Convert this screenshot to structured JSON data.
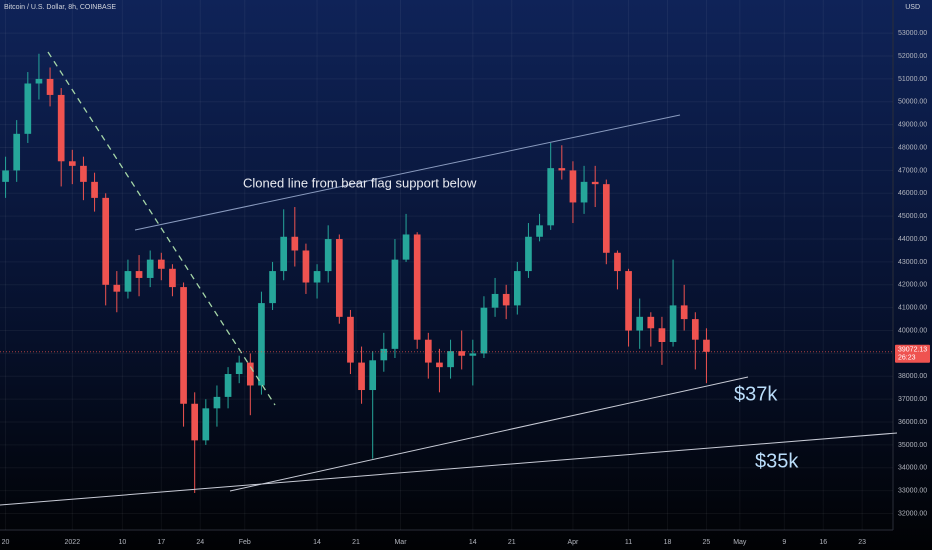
{
  "chart_data": {
    "type": "candlestick",
    "title": "Bitcoin / U.S. Dollar, 8h, COINBASE",
    "currency": "USD",
    "annotations": [
      "Cloned line from bear flag support below",
      "$37k",
      "$35k"
    ],
    "last_price": 39072.13,
    "countdown": "26:23",
    "up_color": "#26a69a",
    "down_color": "#ef5350",
    "x": [
      "2021-12-20",
      "2021-12-22",
      "2021-12-24",
      "2021-12-26",
      "2021-12-28",
      "2021-12-30",
      "2022-01-01",
      "2022-01-03",
      "2022-01-05",
      "2022-01-07",
      "2022-01-09",
      "2022-01-11",
      "2022-01-13",
      "2022-01-15",
      "2022-01-17",
      "2022-01-19",
      "2022-01-21",
      "2022-01-23",
      "2022-01-25",
      "2022-01-27",
      "2022-01-29",
      "2022-01-31",
      "2022-02-02",
      "2022-02-04",
      "2022-02-06",
      "2022-02-08",
      "2022-02-10",
      "2022-02-12",
      "2022-02-14",
      "2022-02-16",
      "2022-02-18",
      "2022-02-20",
      "2022-02-22",
      "2022-02-24",
      "2022-02-26",
      "2022-02-28",
      "2022-03-02",
      "2022-03-04",
      "2022-03-06",
      "2022-03-08",
      "2022-03-10",
      "2022-03-12",
      "2022-03-14",
      "2022-03-16",
      "2022-03-18",
      "2022-03-20",
      "2022-03-22",
      "2022-03-24",
      "2022-03-26",
      "2022-03-28",
      "2022-03-30",
      "2022-04-01",
      "2022-04-03",
      "2022-04-05",
      "2022-04-07",
      "2022-04-09",
      "2022-04-11",
      "2022-04-13",
      "2022-04-15",
      "2022-04-17",
      "2022-04-19",
      "2022-04-21",
      "2022-04-23",
      "2022-04-25"
    ],
    "open": [
      46500,
      47000,
      48600,
      50800,
      51000,
      50300,
      47400,
      47200,
      46500,
      45800,
      42000,
      41700,
      42600,
      42300,
      43100,
      42700,
      41900,
      36800,
      35200,
      36600,
      37100,
      38100,
      38600,
      37600,
      41200,
      42600,
      44100,
      43500,
      42100,
      42600,
      44000,
      40600,
      38600,
      37400,
      38700,
      39200,
      43100,
      44200,
      39600,
      38600,
      38400,
      39100,
      38900,
      39000,
      41000,
      41600,
      41100,
      42600,
      44100,
      44600,
      47100,
      47000,
      45600,
      46500,
      46400,
      43400,
      42600,
      40000,
      40600,
      40100,
      39500,
      41100,
      40500,
      39600
    ],
    "high": [
      47600,
      49200,
      51300,
      52100,
      51500,
      50600,
      47900,
      47600,
      46900,
      46000,
      42600,
      43100,
      43300,
      43500,
      43400,
      42900,
      42100,
      37300,
      37000,
      37600,
      38400,
      38900,
      39000,
      41700,
      43000,
      45300,
      45400,
      43800,
      42900,
      44600,
      44200,
      40900,
      39300,
      39100,
      39900,
      44000,
      45100,
      44300,
      39900,
      39200,
      39600,
      40000,
      39600,
      41500,
      42300,
      42000,
      43000,
      44700,
      45100,
      48200,
      48100,
      47400,
      47200,
      47200,
      46600,
      43500,
      42700,
      41400,
      40800,
      40600,
      43100,
      42000,
      40800,
      40100
    ],
    "low": [
      45800,
      46500,
      48200,
      50100,
      49800,
      46300,
      46400,
      45700,
      45200,
      41100,
      40800,
      41400,
      41500,
      41900,
      42200,
      41500,
      35800,
      32900,
      35000,
      35800,
      36600,
      37700,
      36300,
      37200,
      40900,
      42200,
      42800,
      41600,
      41400,
      42100,
      40300,
      38100,
      36800,
      34400,
      38200,
      38800,
      43000,
      39200,
      37900,
      37300,
      37900,
      38300,
      37600,
      38800,
      40600,
      40500,
      40700,
      42300,
      43900,
      44400,
      46600,
      44700,
      45100,
      45400,
      42900,
      41800,
      39300,
      39200,
      39300,
      38500,
      39300,
      40000,
      38300,
      37700
    ],
    "close": [
      47000,
      48600,
      50800,
      51000,
      50300,
      47400,
      47200,
      46500,
      45800,
      42000,
      41700,
      42600,
      42300,
      43100,
      42700,
      41900,
      36800,
      35200,
      36600,
      37100,
      38100,
      38600,
      37600,
      41200,
      42600,
      44100,
      43500,
      42100,
      42600,
      44000,
      40600,
      38600,
      37400,
      38700,
      39200,
      43100,
      44200,
      39600,
      38600,
      38400,
      39100,
      38900,
      39000,
      41000,
      41600,
      41100,
      42600,
      44100,
      44600,
      47100,
      47000,
      45600,
      46500,
      46400,
      43400,
      42600,
      40000,
      40600,
      40100,
      39500,
      41100,
      40500,
      39600,
      39072.13
    ],
    "xlim": [
      "2021-12-19",
      "2022-05-28"
    ],
    "xticks": [
      {
        "value": "2021-12-20",
        "label": "20"
      },
      {
        "value": "2022-01-01",
        "label": "2022"
      },
      {
        "value": "2022-01-10",
        "label": "10"
      },
      {
        "value": "2022-01-17",
        "label": "17"
      },
      {
        "value": "2022-01-24",
        "label": "24"
      },
      {
        "value": "2022-02-01",
        "label": "Feb"
      },
      {
        "value": "2022-02-14",
        "label": "14"
      },
      {
        "value": "2022-02-21",
        "label": "21"
      },
      {
        "value": "2022-03-01",
        "label": "Mar"
      },
      {
        "value": "2022-03-14",
        "label": "14"
      },
      {
        "value": "2022-03-21",
        "label": "21"
      },
      {
        "value": "2022-04-01",
        "label": "Apr"
      },
      {
        "value": "2022-04-11",
        "label": "11"
      },
      {
        "value": "2022-04-18",
        "label": "18"
      },
      {
        "value": "2022-04-25",
        "label": "25"
      },
      {
        "value": "2022-05-01",
        "label": "May"
      },
      {
        "value": "2022-05-09",
        "label": "9"
      },
      {
        "value": "2022-05-16",
        "label": "16"
      },
      {
        "value": "2022-05-23",
        "label": "23"
      }
    ],
    "ylim": [
      31500,
      54450
    ],
    "yticks": [
      {
        "value": 32000,
        "label": "32000.00"
      },
      {
        "value": 33000,
        "label": "33000.00"
      },
      {
        "value": 34000,
        "label": "34000.00"
      },
      {
        "value": 35000,
        "label": "35000.00"
      },
      {
        "value": 36000,
        "label": "36000.00"
      },
      {
        "value": 37000,
        "label": "37000.00"
      },
      {
        "value": 38000,
        "label": "38000.00"
      },
      {
        "value": 39000,
        "label": "39000.00"
      },
      {
        "value": 40000,
        "label": "40000.00"
      },
      {
        "value": 41000,
        "label": "41000.00"
      },
      {
        "value": 42000,
        "label": "42000.00"
      },
      {
        "value": 43000,
        "label": "43000.00"
      },
      {
        "value": 44000,
        "label": "44000.00"
      },
      {
        "value": 45000,
        "label": "45000.00"
      },
      {
        "value": 46000,
        "label": "46000.00"
      },
      {
        "value": 47000,
        "label": "47000.00"
      },
      {
        "value": 48000,
        "label": "48000.00"
      },
      {
        "value": 49000,
        "label": "49000.00"
      },
      {
        "value": 50000,
        "label": "50000.00"
      },
      {
        "value": 51000,
        "label": "51000.00"
      },
      {
        "value": 52000,
        "label": "52000.00"
      },
      {
        "value": 53000,
        "label": "53000.00"
      }
    ],
    "grid": true
  }
}
